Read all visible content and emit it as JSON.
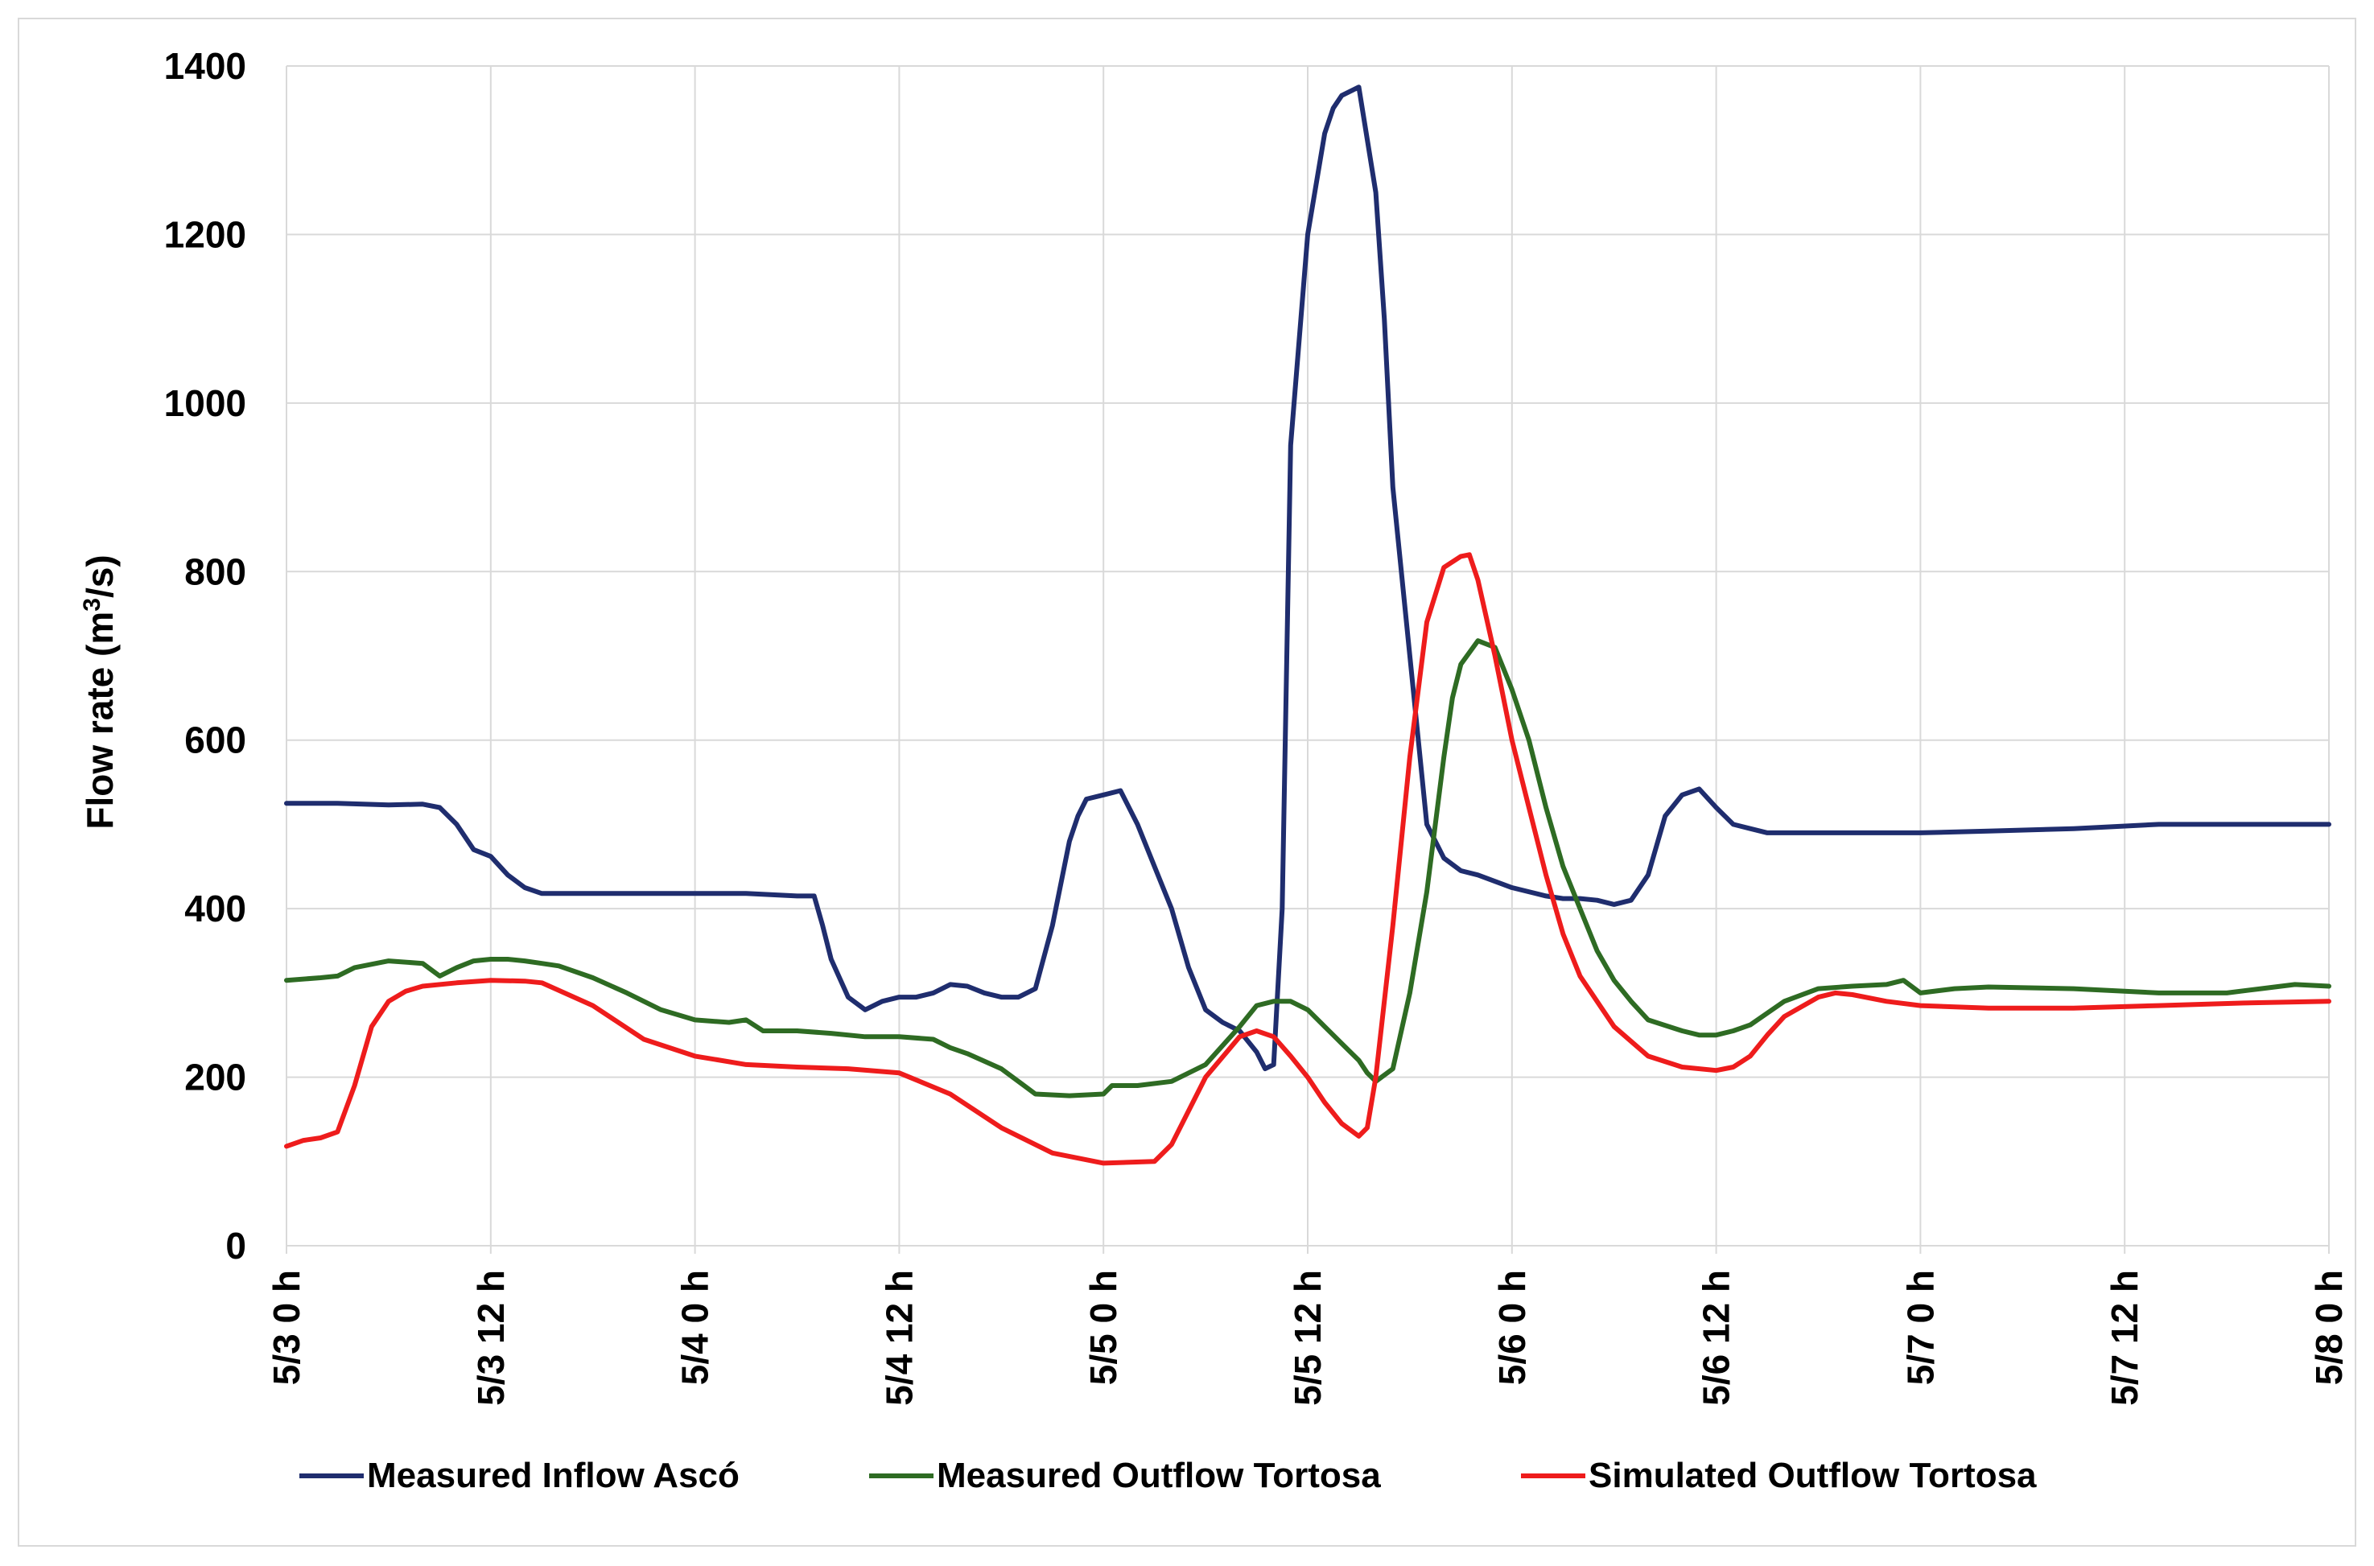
{
  "chart_data": {
    "type": "line",
    "title": "",
    "xlabel": "",
    "ylabel": "Flow rate (m³/s)",
    "ylabel_parts": {
      "before": "Flow rate (m",
      "sup": "3",
      "after": "/s)"
    },
    "ylim": [
      0,
      1400
    ],
    "yticks": [
      0,
      200,
      400,
      600,
      800,
      1000,
      1200,
      1400
    ],
    "xlim": [
      0,
      120
    ],
    "xticks": [
      0,
      12,
      24,
      36,
      48,
      60,
      72,
      84,
      96,
      108,
      120
    ],
    "xtick_labels": [
      "5/3 0 h",
      "5/3 12 h",
      "5/4 0 h",
      "5/4 12 h",
      "5/5 0 h",
      "5/5 12 h",
      "5/6 0 h",
      "5/6 12 h",
      "5/7 0 h",
      "5/7 12 h",
      "5/8 0 h"
    ],
    "x_units": "hours since 5/3 0 h",
    "grid": true,
    "legend_position": "bottom",
    "series": [
      {
        "name": "Measured Inflow Ascó",
        "color": "#1f2d6e",
        "x": [
          0,
          3,
          6,
          8,
          9,
          10,
          11,
          12,
          13,
          14,
          15,
          18,
          24,
          27,
          30,
          31,
          31.5,
          32,
          33,
          34,
          35,
          36,
          37,
          38,
          39,
          40,
          41,
          42,
          43,
          44,
          45,
          46,
          46.5,
          47,
          48,
          49,
          50,
          51,
          52,
          53,
          54,
          55,
          56,
          57,
          57.5,
          58,
          58.5,
          59,
          60,
          61,
          61.5,
          62,
          63,
          64,
          64.5,
          65,
          66,
          67,
          68,
          69,
          70,
          72,
          74,
          75,
          76,
          77,
          78,
          79,
          80,
          81,
          82,
          83,
          84,
          85,
          86,
          87,
          90,
          93,
          96,
          100,
          105,
          110,
          115,
          120
        ],
        "y": [
          525,
          525,
          523,
          524,
          520,
          500,
          470,
          462,
          440,
          425,
          418,
          418,
          418,
          418,
          415,
          415,
          380,
          340,
          295,
          280,
          290,
          295,
          295,
          300,
          310,
          308,
          300,
          295,
          295,
          305,
          380,
          480,
          510,
          530,
          535,
          540,
          500,
          450,
          400,
          330,
          280,
          265,
          255,
          230,
          210,
          215,
          400,
          950,
          1200,
          1320,
          1350,
          1365,
          1375,
          1250,
          1100,
          900,
          700,
          500,
          460,
          445,
          440,
          425,
          415,
          412,
          412,
          410,
          405,
          410,
          440,
          510,
          535,
          542,
          520,
          500,
          495,
          490,
          490,
          490,
          490,
          492,
          495,
          500,
          500,
          500
        ]
      },
      {
        "name": "Measured Outflow Tortosa",
        "color": "#2e6b23",
        "x": [
          0,
          2,
          3,
          4,
          6,
          8,
          9,
          10,
          11,
          12,
          13,
          14,
          15,
          16,
          18,
          20,
          22,
          24,
          26,
          27,
          28,
          30,
          32,
          34,
          36,
          38,
          39,
          40,
          42,
          43,
          44,
          46,
          48,
          48.5,
          50,
          52,
          54,
          56,
          57,
          58,
          59,
          60,
          61,
          62,
          63,
          63.5,
          64,
          65,
          66,
          67,
          67.5,
          68,
          68.5,
          69,
          70,
          71,
          72,
          73,
          74,
          75,
          76,
          77,
          78,
          79,
          80,
          82,
          83,
          84,
          85,
          86,
          88,
          90,
          92,
          94,
          95,
          96,
          98,
          100,
          105,
          110,
          114,
          116,
          118,
          120
        ],
        "y": [
          315,
          318,
          320,
          330,
          338,
          335,
          320,
          330,
          338,
          340,
          340,
          338,
          335,
          332,
          318,
          300,
          280,
          268,
          265,
          268,
          255,
          255,
          252,
          248,
          248,
          245,
          235,
          228,
          210,
          195,
          180,
          178,
          180,
          190,
          190,
          195,
          215,
          260,
          285,
          290,
          290,
          280,
          260,
          240,
          220,
          205,
          195,
          210,
          300,
          420,
          500,
          580,
          650,
          690,
          718,
          710,
          660,
          600,
          520,
          450,
          400,
          350,
          315,
          290,
          268,
          255,
          250,
          250,
          255,
          262,
          290,
          305,
          308,
          310,
          315,
          300,
          305,
          307,
          305,
          300,
          300,
          305,
          310,
          308
        ]
      },
      {
        "name": "Simulated Outflow Tortosa",
        "color": "#ee1c1c",
        "x": [
          0,
          1,
          2,
          3,
          4,
          5,
          6,
          7,
          8,
          10,
          12,
          14,
          15,
          18,
          21,
          24,
          27,
          30,
          33,
          36,
          39,
          42,
          45,
          48,
          51,
          52,
          54,
          56,
          57,
          58,
          59,
          60,
          61,
          62,
          63,
          63.5,
          64,
          65,
          66,
          67,
          68,
          69,
          69.5,
          70,
          71,
          72,
          73,
          74,
          75,
          76,
          78,
          80,
          82,
          84,
          85,
          86,
          87,
          88,
          90,
          91,
          92,
          94,
          96,
          100,
          105,
          110,
          115,
          120
        ],
        "y": [
          118,
          125,
          128,
          135,
          190,
          260,
          290,
          302,
          308,
          312,
          315,
          314,
          312,
          285,
          245,
          225,
          215,
          212,
          210,
          205,
          180,
          140,
          110,
          98,
          100,
          120,
          200,
          248,
          255,
          248,
          225,
          200,
          170,
          145,
          130,
          140,
          200,
          380,
          580,
          740,
          805,
          818,
          820,
          790,
          700,
          600,
          520,
          440,
          370,
          320,
          260,
          225,
          212,
          208,
          212,
          225,
          250,
          272,
          295,
          300,
          298,
          290,
          285,
          282,
          282,
          285,
          288,
          290
        ]
      }
    ]
  }
}
